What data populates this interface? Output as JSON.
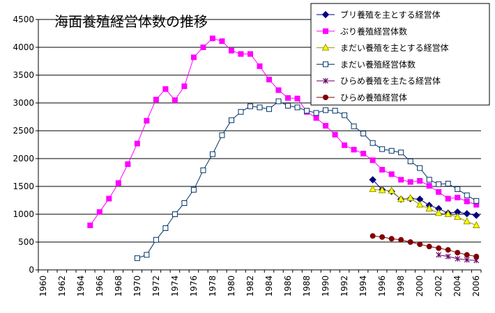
{
  "chart_data": {
    "type": "line",
    "title": "海面養殖経営体数の推移",
    "xlabel": "",
    "ylabel": "",
    "xlim": [
      1960,
      2006
    ],
    "ylim": [
      0,
      4500
    ],
    "y_ticks": [
      0,
      500,
      1000,
      1500,
      2000,
      2500,
      3000,
      3500,
      4000,
      4500
    ],
    "x_ticks": [
      1960,
      1962,
      1964,
      1966,
      1968,
      1970,
      1972,
      1974,
      1976,
      1978,
      1980,
      1982,
      1984,
      1986,
      1988,
      1990,
      1992,
      1994,
      1996,
      1998,
      2000,
      2002,
      2004,
      2006
    ],
    "grid": "horizontal",
    "legend_position": "top-right",
    "series": [
      {
        "name": "ブリ養殖を主とする経営体",
        "color": "#000080",
        "marker": "diamond",
        "x": [
          1995,
          1996,
          1997,
          1998,
          1999,
          2000,
          2001,
          2002,
          2003,
          2004,
          2005,
          2006
        ],
        "values": [
          1620,
          1440,
          1410,
          1270,
          1280,
          1270,
          1160,
          1100,
          1020,
          1040,
          1010,
          980
        ]
      },
      {
        "name": "ぶり養殖経営体数",
        "color": "#ff00ff",
        "marker": "square",
        "x": [
          1965,
          1966,
          1967,
          1968,
          1969,
          1970,
          1971,
          1972,
          1973,
          1974,
          1975,
          1976,
          1977,
          1978,
          1979,
          1980,
          1981,
          1982,
          1983,
          1984,
          1985,
          1986,
          1987,
          1988,
          1989,
          1990,
          1991,
          1992,
          1993,
          1994,
          1995,
          1996,
          1997,
          1998,
          1999,
          2000,
          2001,
          2002,
          2003,
          2004,
          2005,
          2006
        ],
        "values": [
          800,
          1040,
          1280,
          1560,
          1900,
          2270,
          2680,
          3060,
          3250,
          3050,
          3300,
          3820,
          4000,
          4160,
          4110,
          3940,
          3880,
          3880,
          3660,
          3420,
          3230,
          3090,
          3080,
          2840,
          2730,
          2590,
          2430,
          2240,
          2160,
          2090,
          1970,
          1800,
          1720,
          1620,
          1580,
          1600,
          1510,
          1400,
          1280,
          1300,
          1230,
          1170
        ]
      },
      {
        "name": "まだい養殖を主とする経営体",
        "color": "#999900",
        "fill": "#ffff00",
        "marker": "triangle",
        "x": [
          1995,
          1996,
          1997,
          1998,
          1999,
          2000,
          2001,
          2002,
          2003,
          2004,
          2005,
          2006
        ],
        "values": [
          1450,
          1430,
          1420,
          1270,
          1290,
          1170,
          1100,
          1020,
          1000,
          950,
          870,
          800
        ]
      },
      {
        "name": "まだい養殖経営体数",
        "color": "#003366",
        "fill": "#ffffff",
        "marker": "square-open",
        "x": [
          1970,
          1971,
          1972,
          1973,
          1974,
          1975,
          1976,
          1977,
          1978,
          1979,
          1980,
          1981,
          1982,
          1983,
          1984,
          1985,
          1986,
          1987,
          1988,
          1989,
          1990,
          1991,
          1992,
          1993,
          1994,
          1995,
          1996,
          1997,
          1998,
          1999,
          2000,
          2001,
          2002,
          2003,
          2004,
          2005,
          2006
        ],
        "values": [
          210,
          270,
          540,
          750,
          1000,
          1200,
          1440,
          1790,
          2080,
          2420,
          2690,
          2840,
          2940,
          2920,
          2890,
          3030,
          2950,
          2920,
          2860,
          2820,
          2870,
          2860,
          2780,
          2580,
          2450,
          2280,
          2170,
          2140,
          2110,
          1950,
          1830,
          1620,
          1540,
          1550,
          1450,
          1340,
          1240
        ]
      },
      {
        "name": "ひらめ養殖を主たる経営体",
        "color": "#660066",
        "marker": "star",
        "x": [
          2002,
          2003,
          2004,
          2005,
          2006
        ],
        "values": [
          270,
          240,
          200,
          180,
          170
        ]
      },
      {
        "name": "ひらめ養殖経営体",
        "color": "#800000",
        "marker": "circle",
        "x": [
          1995,
          1996,
          1997,
          1998,
          1999,
          2000,
          2001,
          2002,
          2003,
          2004,
          2005,
          2006
        ],
        "values": [
          610,
          590,
          560,
          540,
          500,
          460,
          420,
          390,
          360,
          310,
          270,
          240
        ]
      }
    ]
  }
}
